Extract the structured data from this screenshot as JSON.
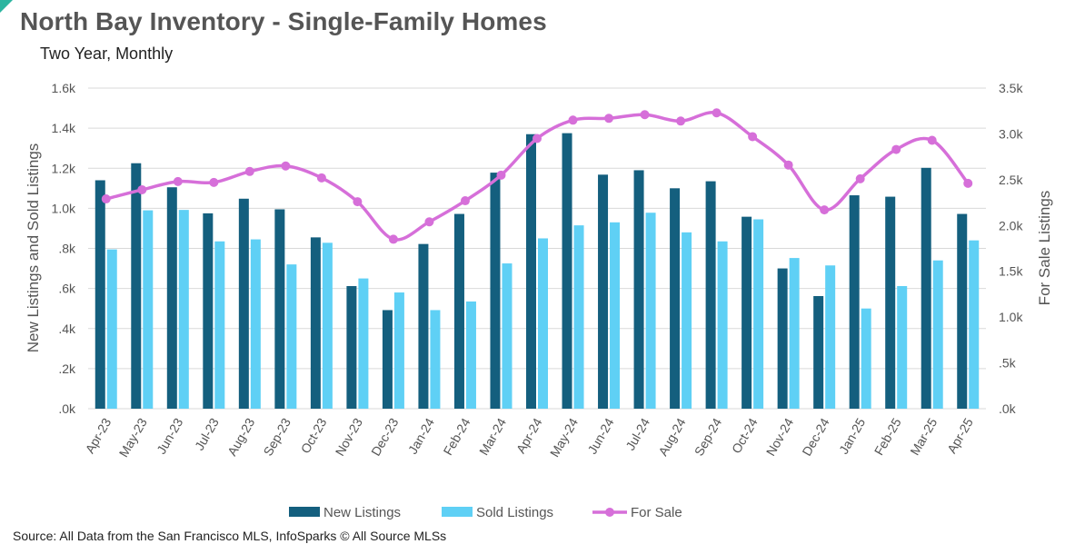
{
  "header": {
    "title": "North Bay Inventory - Single-Family Homes",
    "subtitle": "Two Year, Monthly"
  },
  "footer": {
    "source": "Source: All Data from the San Francisco MLS, InfoSparks © All Source MLSs"
  },
  "colors": {
    "new_listings": "#145f7e",
    "sold_listings": "#5fd0f5",
    "for_sale": "#d66fd9",
    "grid": "#d9d9d9",
    "corner_accent": "#2bb5a0"
  },
  "chart_data": {
    "type": "bar",
    "categories": [
      "Apr-23",
      "May-23",
      "Jun-23",
      "Jul-23",
      "Aug-23",
      "Sep-23",
      "Oct-23",
      "Nov-23",
      "Dec-23",
      "Jan-24",
      "Feb-24",
      "Mar-24",
      "Apr-24",
      "May-24",
      "Jun-24",
      "Jul-24",
      "Aug-24",
      "Sep-24",
      "Oct-24",
      "Nov-24",
      "Dec-24",
      "Jan-25",
      "Feb-25",
      "Mar-25",
      "Apr-25"
    ],
    "series": [
      {
        "name": "New Listings",
        "type": "bar",
        "axis": "left",
        "values": [
          1140,
          1225,
          1105,
          975,
          1048,
          995,
          855,
          612,
          492,
          822,
          972,
          1178,
          1370,
          1375,
          1168,
          1190,
          1100,
          1135,
          958,
          700,
          562,
          1065,
          1058,
          1202,
          972
        ]
      },
      {
        "name": "Sold Listings",
        "type": "bar",
        "axis": "left",
        "values": [
          795,
          990,
          992,
          835,
          845,
          720,
          828,
          650,
          580,
          492,
          535,
          725,
          850,
          915,
          930,
          978,
          880,
          835,
          945,
          752,
          715,
          500,
          612,
          740,
          840
        ]
      },
      {
        "name": "For Sale",
        "type": "line",
        "axis": "right",
        "values": [
          2290,
          2390,
          2480,
          2470,
          2590,
          2650,
          2520,
          2260,
          1850,
          2040,
          2270,
          2550,
          2950,
          3150,
          3170,
          3210,
          3140,
          3230,
          2970,
          2660,
          2170,
          2510,
          2830,
          2930,
          2460
        ]
      }
    ],
    "y_left": {
      "label": "New Listings and Sold Listings",
      "ylim": [
        0,
        1600
      ],
      "ticks": [
        0,
        200,
        400,
        600,
        800,
        1000,
        1200,
        1400,
        1600
      ],
      "tick_labels": [
        ".0k",
        ".2k",
        ".4k",
        ".6k",
        ".8k",
        "1.0k",
        "1.2k",
        "1.4k",
        "1.6k"
      ]
    },
    "y_right": {
      "label": "For Sale Listings",
      "ylim": [
        0,
        3500
      ],
      "ticks": [
        0,
        500,
        1000,
        1500,
        2000,
        2500,
        3000,
        3500
      ],
      "tick_labels": [
        ".0k",
        ".5k",
        "1.0k",
        "1.5k",
        "2.0k",
        "2.5k",
        "3.0k",
        "3.5k"
      ]
    },
    "grid": true,
    "legend": "bottom-center"
  }
}
